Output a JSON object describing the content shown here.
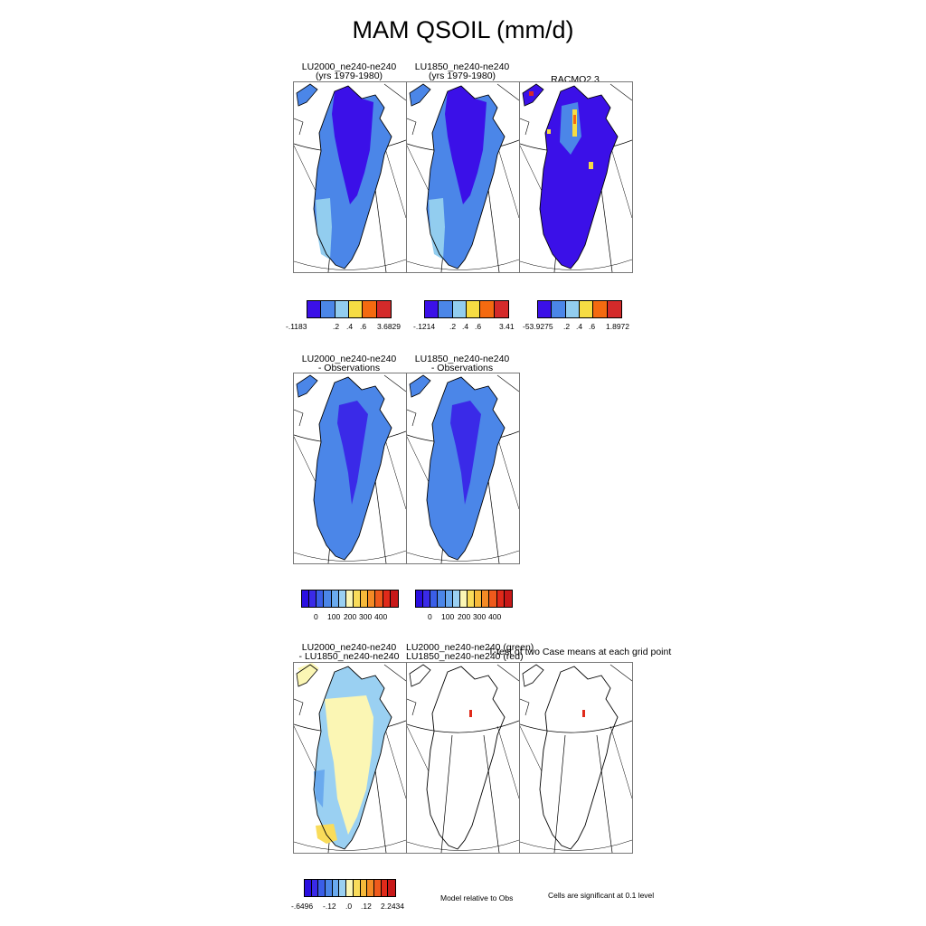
{
  "title": "MAM QSOIL (mm/d)",
  "row1": {
    "panels": [
      {
        "title_line1": "LU2000_ne240-ne240",
        "title_line2": "(yrs 1979-1980)"
      },
      {
        "title_line1": "LU1850_ne240-ne240",
        "title_line2": "(yrs 1979-1980)"
      },
      {
        "title_line1": "RACMO2.3",
        "title_line2": ""
      }
    ],
    "colorbars": [
      {
        "labels": [
          "-.1183",
          ".2",
          ".4",
          ".6",
          "3.6829"
        ]
      },
      {
        "labels": [
          "-.1214",
          ".2",
          ".4",
          ".6",
          "3.41"
        ]
      },
      {
        "labels": [
          "-53.9275",
          ".2",
          ".4",
          ".6",
          "1.8972"
        ]
      }
    ],
    "colors": [
      "#3b10e8",
      "#4b86e8",
      "#92cdef",
      "#f6dc43",
      "#f46a10",
      "#d42a2a"
    ]
  },
  "row2": {
    "panels": [
      {
        "title_line1": "LU2000_ne240-ne240",
        "title_line2": "- Observations"
      },
      {
        "title_line1": "LU1850_ne240-ne240",
        "title_line2": "- Observations"
      }
    ],
    "colorbars": [
      {
        "labels": [
          "0",
          "100",
          "200",
          "300",
          "400"
        ]
      },
      {
        "labels": [
          "0",
          "100",
          "200",
          "300",
          "400"
        ]
      }
    ],
    "colors": [
      "#2a0fe0",
      "#3a2ae8",
      "#3a5ee8",
      "#4b86e8",
      "#6aaaee",
      "#9ad0f2",
      "#fbf6b4",
      "#f9dc5a",
      "#f6b93a",
      "#f48a25",
      "#ef5a1c",
      "#e02a1a",
      "#c81818"
    ]
  },
  "row3": {
    "panels": [
      {
        "title_line1": "LU2000_ne240-ne240",
        "title_line2": "- LU1850_ne240-ne240"
      },
      {
        "title_line1": "LU2000_ne240-ne240 (green)",
        "title_line2": "LU1850_ne240-ne240 (red)"
      },
      {
        "title_line1": "T-test of two Case means at each grid point",
        "title_line2": ""
      }
    ],
    "colorbar": {
      "labels": [
        "-.6496",
        "-.12",
        ".0",
        ".12",
        "2.2434"
      ]
    },
    "colors": [
      "#2a0fe0",
      "#3a2ae8",
      "#3a5ee8",
      "#4b86e8",
      "#6aaaee",
      "#9ad0f2",
      "#fbf6b4",
      "#f9dc5a",
      "#f6b93a",
      "#f48a25",
      "#ef5a1c",
      "#e02a1a",
      "#c81818"
    ],
    "note_middle": "Model relative to Obs",
    "note_right": "Cells are significant at 0.1 level"
  }
}
